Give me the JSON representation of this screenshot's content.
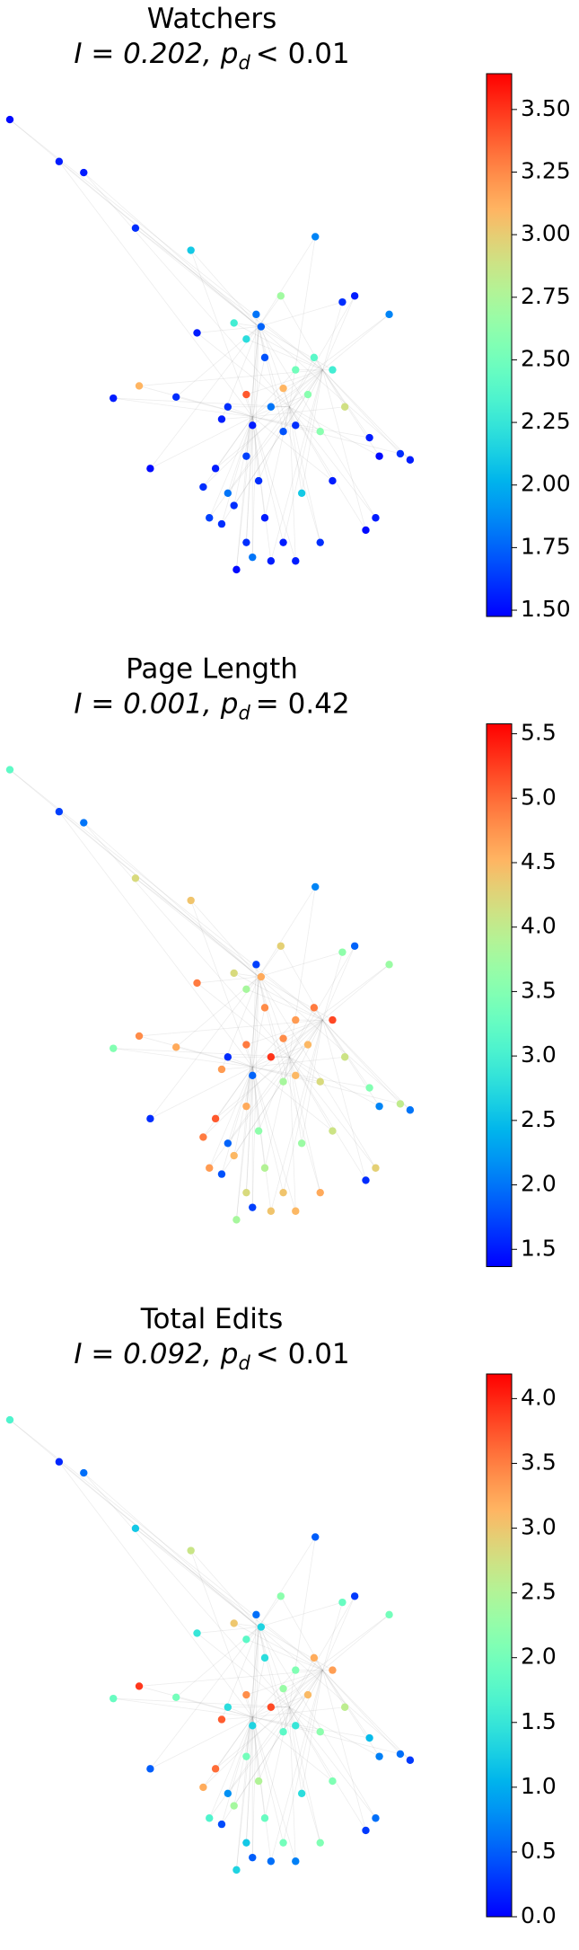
{
  "chart_data": [
    {
      "type": "network",
      "title": "Watchers",
      "statistic": "I = 0.202,",
      "p_symbol": "p",
      "p_subscript": "d",
      "p_test": "< 0.01",
      "colorbar": {
        "cmap": "rainbow",
        "lim": [
          1.475,
          3.643
        ],
        "ticks": [
          {
            "value": 1.5,
            "label": "1.50"
          },
          1.75,
          {
            "value": 2.0,
            "label": "2.00"
          },
          2.25,
          {
            "value": 2.5,
            "label": "2.50"
          },
          2.75,
          {
            "value": 3.0,
            "label": "3.00"
          },
          3.25,
          {
            "value": 3.5,
            "label": "3.50"
          }
        ]
      },
      "values": [
        1.5,
        1.55,
        1.55,
        1.6,
        2.1,
        1.85,
        2.7,
        1.8,
        1.75,
        2.2,
        1.7,
        1.55,
        2.3,
        1.55,
        1.6,
        1.85,
        2.4,
        2.3,
        2.5,
        3.1,
        2.6,
        2.9,
        1.8,
        3.4,
        1.6,
        1.55,
        3.1,
        1.55,
        1.6,
        1.55,
        1.7,
        1.6,
        2.6,
        1.55,
        1.5,
        1.55,
        1.6,
        1.5,
        1.6,
        1.55,
        1.65,
        1.8,
        1.6,
        2.1,
        1.55,
        1.55,
        1.5,
        1.6,
        1.55,
        1.6,
        1.55,
        1.6,
        1.8,
        1.55,
        1.55,
        1.5,
        1.6,
        1.65
      ]
    },
    {
      "type": "network",
      "title": "Page Length",
      "statistic": "I = 0.001,",
      "p_symbol": "p",
      "p_subscript": "d",
      "p_test": "= 0.42",
      "colorbar": {
        "cmap": "rainbow",
        "lim": [
          1.366,
          5.577
        ],
        "ticks": [
          1.5,
          {
            "value": 2.0,
            "label": "2.0"
          },
          2.5,
          {
            "value": 3.0,
            "label": "3.0"
          },
          3.5,
          {
            "value": 4.0,
            "label": "4.0"
          },
          4.5,
          {
            "value": 5.0,
            "label": "5.0"
          },
          5.5
        ]
      },
      "values": [
        3.2,
        1.7,
        2.0,
        4.2,
        4.4,
        2.1,
        4.3,
        1.7,
        4.6,
        3.8,
        4.8,
        4.9,
        4.2,
        1.9,
        3.6,
        3.7,
        4.9,
        5.2,
        4.7,
        4.8,
        4.5,
        4.1,
        5.3,
        4.9,
        1.6,
        4.7,
        4.8,
        3.5,
        4.6,
        1.9,
        3.8,
        4.5,
        4.2,
        3.5,
        2.1,
        2.0,
        4.0,
        1.6,
        4.9,
        5.1,
        4.6,
        1.9,
        3.6,
        3.7,
        4.1,
        4.3,
        1.6,
        4.5,
        3.9,
        4.2,
        4.4,
        4.6,
        1.7,
        4.4,
        4.5,
        3.8,
        1.8,
        4.7
      ]
    },
    {
      "type": "network",
      "title": "Total Edits",
      "statistic": "I = 0.092,",
      "p_symbol": "p",
      "p_subscript": "d",
      "p_test": "< 0.01",
      "colorbar": {
        "cmap": "rainbow",
        "lim": [
          0,
          4.19
        ],
        "ticks": [
          {
            "value": 0,
            "label": "0.0"
          },
          0.5,
          {
            "value": 1.0,
            "label": "1.0"
          },
          1.5,
          {
            "value": 2.0,
            "label": "2.0"
          },
          2.5,
          {
            "value": 3.0,
            "label": "3.0"
          },
          3.5,
          {
            "value": 4.0,
            "label": "4.0"
          }
        ]
      },
      "values": [
        1.7,
        0.2,
        0.6,
        1.2,
        2.7,
        0.5,
        2.2,
        0.6,
        1.3,
        1.8,
        1.4,
        1.5,
        3.0,
        0.3,
        1.9,
        2.0,
        3.2,
        3.3,
        2.1,
        2.3,
        3.1,
        2.6,
        3.8,
        3.4,
        1.4,
        3.7,
        3.9,
        1.9,
        2.0,
        1.3,
        1.8,
        1.5,
        2.2,
        1.1,
        0.7,
        0.3,
        0.6,
        0.5,
        3.2,
        3.6,
        2.0,
        0.8,
        2.5,
        1.4,
        2.1,
        0.6,
        0.3,
        2.4,
        1.9,
        1.2,
        2.0,
        2.1,
        0.5,
        0.6,
        0.7,
        1.3,
        0.4,
        1.7
      ]
    }
  ]
}
